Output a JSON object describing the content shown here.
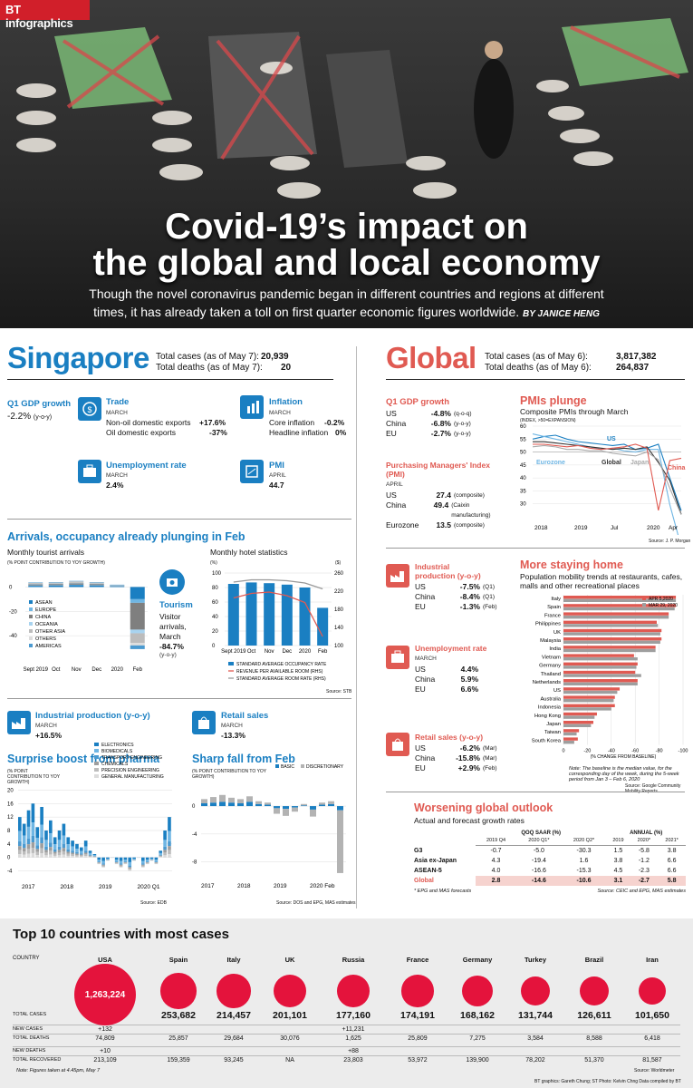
{
  "header": {
    "logo": "BT infographics",
    "title_line1": "Covid-19’s impact on",
    "title_line2": "the global and local economy",
    "subtitle": "Though the novel coronavirus pandemic began in different countries and regions at different times, it has already taken a toll on first quarter economic figures worldwide.",
    "byline": "BY JANICE HENG"
  },
  "singapore": {
    "title": "Singapore",
    "cases_label": "Total cases (as of May 7):",
    "cases": "20,939",
    "deaths_label": "Total deaths (as of May 7):",
    "deaths": "20",
    "gdp_title": "Q1 GDP growth",
    "gdp_value": "-2.2%",
    "gdp_unit": "(y-o-y)",
    "trade_title": "Trade",
    "trade_month": "MARCH",
    "nodx_label": "Non-oil domestic exports",
    "nodx": "+17.6%",
    "odx_label": "Oil domestic exports",
    "odx": "-37%",
    "infl_title": "Inflation",
    "infl_month": "MARCH",
    "core_label": "Core inflation",
    "core": "-0.2%",
    "headline_label": "Headline inflation",
    "headline": "0%",
    "unemp_title": "Unemployment rate",
    "unemp_month": "MARCH",
    "unemp": "2.4%",
    "pmi_title": "PMI",
    "pmi_month": "APRIL",
    "pmi": "44.7",
    "arrivals_title": "Arrivals, occupancy already plunging in Feb",
    "tourist_title": "Monthly tourist arrivals",
    "tourist_axis": "(% POINT CONTRIBUTION TO YOY GROWTH)",
    "hotel_title": "Monthly hotel statistics",
    "hotel_left_unit": "(%)",
    "hotel_right_unit": "($)",
    "tourism_title": "Tourism",
    "tourism_text": "Visitor arrivals, March",
    "tourism_value": "-84.7%",
    "tourism_unit": "(y-o-y)",
    "source_stb": "Source: STB",
    "ip_title": "Industrial production (y-o-y)",
    "ip_month": "MARCH",
    "ip_value": "+16.5%",
    "retail_title": "Retail sales",
    "retail_month": "MARCH",
    "retail_value": "-13.3%",
    "pharma_title": "Surprise boost from pharma",
    "pharma_axis": "(% POINT CONTRIBUTION TO YOY GROWTH)",
    "feb_title": "Sharp fall from Feb",
    "feb_axis": "(% POINT CONTRIBUTION TO YOY GROWTH)",
    "source_edb": "Source: EDB",
    "source_dos": "Source: DOS and EPG, MAS estimates"
  },
  "global": {
    "title": "Global",
    "cases_label": "Total cases (as of May 6):",
    "cases": "3,817,382",
    "deaths_label": "Total deaths (as of May 6):",
    "deaths": "264,837",
    "gdp_title": "Q1 GDP growth",
    "gdp_rows": [
      {
        "c": "US",
        "v": "-4.8%",
        "n": "(q-o-q)"
      },
      {
        "c": "China",
        "v": "-6.8%",
        "n": "(y-o-y)"
      },
      {
        "c": "EU",
        "v": "-2.7%",
        "n": "(y-o-y)"
      }
    ],
    "pmi_title": "Purchasing Managers' Index (PMI)",
    "pmi_month": "APRIL",
    "pmi_rows": [
      {
        "c": "US",
        "v": "27.4",
        "n": "(composite)"
      },
      {
        "c": "China",
        "v": "49.4",
        "n": "(Caixin manufacturing)"
      },
      {
        "c": "Eurozone",
        "v": "13.5",
        "n": "(composite)"
      }
    ],
    "pmi_chart_title": "PMIs plunge",
    "pmi_chart_sub": "Composite PMIs through March",
    "pmi_chart_axis": "(INDEX, >50=EXPANSION)",
    "source_jpm": "Source: J. P. Morgan",
    "ip_title": "Industrial production (y-o-y)",
    "ip_rows": [
      {
        "c": "US",
        "v": "-7.5%",
        "n": "(Q1)"
      },
      {
        "c": "China",
        "v": "-8.4%",
        "n": "(Q1)"
      },
      {
        "c": "EU",
        "v": "-1.3%",
        "n": "(Feb)"
      }
    ],
    "unemp_title": "Unemployment rate",
    "unemp_month": "MARCH",
    "unemp_rows": [
      {
        "c": "US",
        "v": "4.4%"
      },
      {
        "c": "China",
        "v": "5.9%"
      },
      {
        "c": "EU",
        "v": "6.6%"
      }
    ],
    "retail_title": "Retail sales (y-o-y)",
    "retail_rows": [
      {
        "c": "US",
        "v": "-6.2%",
        "n": "(Mar)"
      },
      {
        "c": "China",
        "v": "-15.8%",
        "n": "(Mar)"
      },
      {
        "c": "EU",
        "v": "+2.9%",
        "n": "(Feb)"
      }
    ],
    "mobility_title": "More staying home",
    "mobility_sub": "Population mobility trends at restaurants, cafes, malls and other recreational places",
    "mobility_note": "Note: The baseline is the median value, for the corresponding day of the week, during the 5-week period from Jan 3 – Feb 6, 2020",
    "mobility_axis": "(% CHANGE FROM BASELINE)",
    "source_google": "Source: Google Community Mobility Reports",
    "outlook_title": "Worsening global outlook",
    "outlook_sub": "Actual and forecast growth rates",
    "outlook_group1": "QOQ SAAR (%)",
    "outlook_group2": "ANNUAL (%)",
    "outlook_cols": [
      "2019 Q4",
      "2020 Q1*",
      "2020 Q2*",
      "2019",
      "2020*",
      "2021*"
    ],
    "outlook_rows": [
      {
        "name": "G3",
        "vals": [
          "-0.7",
          "-5.0",
          "-30.3",
          "1.5",
          "-5.8",
          "3.8"
        ]
      },
      {
        "name": "Asia ex-Japan",
        "vals": [
          "4.3",
          "-19.4",
          "1.6",
          "3.8",
          "-1.2",
          "6.6"
        ]
      },
      {
        "name": "ASEAN-5",
        "vals": [
          "4.0",
          "-16.6",
          "-15.3",
          "4.5",
          "-2.3",
          "6.6"
        ]
      },
      {
        "name": "Global",
        "vals": [
          "2.8",
          "-14.6",
          "-10.6",
          "3.1",
          "-2.7",
          "5.8"
        ]
      }
    ],
    "outlook_note": "* EPG and MAS forecasts",
    "source_ceic": "Source: CEIC and EPG, MAS estimates"
  },
  "top10": {
    "title": "Top 10 countries with most cases",
    "country_label": "COUNTRY",
    "row_labels": [
      "TOTAL CASES",
      "NEW CASES",
      "TOTAL DEATHS",
      "NEW DEATHS",
      "TOTAL RECOVERED"
    ],
    "countries": [
      {
        "name": "USA",
        "cases": "1,263,224",
        "cases_n": 1263224,
        "new": "+132",
        "deaths": "74,809",
        "new_d": "+10",
        "rec": "213,109"
      },
      {
        "name": "Spain",
        "cases": "253,682",
        "cases_n": 253682,
        "new": "",
        "deaths": "25,857",
        "new_d": "",
        "rec": "159,359"
      },
      {
        "name": "Italy",
        "cases": "214,457",
        "cases_n": 214457,
        "new": "",
        "deaths": "29,684",
        "new_d": "",
        "rec": "93,245"
      },
      {
        "name": "UK",
        "cases": "201,101",
        "cases_n": 201101,
        "new": "",
        "deaths": "30,076",
        "new_d": "",
        "rec": "NA"
      },
      {
        "name": "Russia",
        "cases": "177,160",
        "cases_n": 177160,
        "new": "+11,231",
        "deaths": "1,625",
        "new_d": "+88",
        "rec": "23,803"
      },
      {
        "name": "France",
        "cases": "174,191",
        "cases_n": 174191,
        "new": "",
        "deaths": "25,809",
        "new_d": "",
        "rec": "53,972"
      },
      {
        "name": "Germany",
        "cases": "168,162",
        "cases_n": 168162,
        "new": "",
        "deaths": "7,275",
        "new_d": "",
        "rec": "139,900"
      },
      {
        "name": "Turkey",
        "cases": "131,744",
        "cases_n": 131744,
        "new": "",
        "deaths": "3,584",
        "new_d": "",
        "rec": "78,202"
      },
      {
        "name": "Brazil",
        "cases": "126,611",
        "cases_n": 126611,
        "new": "",
        "deaths": "8,588",
        "new_d": "",
        "rec": "51,370"
      },
      {
        "name": "Iran",
        "cases": "101,650",
        "cases_n": 101650,
        "new": "",
        "deaths": "6,418",
        "new_d": "",
        "rec": "81,587"
      }
    ],
    "note": "Note: Figures taken at 4.45pm, May 7",
    "source": "Source: Worldmeter",
    "credits": "BT graphics: Gareth Chung; ST Photo: Kelvin Chng   Data compiled by BT"
  },
  "colors": {
    "blue": "#1a7fc2",
    "red": "#e05a52",
    "grey": "#999999",
    "bg_grey": "#ececec"
  },
  "chart_data": [
    {
      "type": "bar",
      "title": "Monthly tourist arrivals",
      "categories": [
        "Sept 2019",
        "Oct",
        "Nov",
        "Dec",
        "2020",
        "Feb"
      ],
      "ylim": [
        -60,
        10
      ],
      "yticks": [
        0,
        -20,
        -40
      ],
      "series": [
        {
          "name": "ASEAN",
          "values": [
            1.0,
            1.2,
            1.5,
            1.2,
            0.5,
            -10
          ]
        },
        {
          "name": "EUROPE",
          "values": [
            0.3,
            0.3,
            0.4,
            0.3,
            0.2,
            -3
          ]
        },
        {
          "name": "CHINA",
          "values": [
            1.0,
            1.0,
            1.2,
            1.0,
            0.5,
            -22
          ]
        },
        {
          "name": "OCEANIA",
          "values": [
            0.2,
            0.3,
            0.3,
            0.3,
            0.1,
            -3
          ]
        },
        {
          "name": "OTHER ASIA",
          "values": [
            0.8,
            0.8,
            1.0,
            0.8,
            0.4,
            -8
          ]
        },
        {
          "name": "OTHERS",
          "values": [
            0.2,
            0.2,
            0.3,
            0.2,
            0.1,
            -2
          ]
        },
        {
          "name": "AMERICAS",
          "values": [
            0.3,
            0.2,
            0.3,
            0.2,
            0.1,
            -3
          ]
        }
      ]
    },
    {
      "type": "bar",
      "title": "Monthly hotel statistics",
      "categories": [
        "Sept 2019",
        "Oct",
        "Nov",
        "Dec",
        "2020",
        "Feb"
      ],
      "ylim": [
        0,
        100
      ],
      "yticks": [
        0,
        20,
        40,
        60,
        80,
        100
      ],
      "y2lim": [
        100,
        260
      ],
      "y2ticks": [
        100,
        140,
        180,
        220,
        260
      ],
      "series": [
        {
          "name": "STANDARD AVERAGE OCCUPANCY RATE",
          "values": [
            85,
            87,
            86,
            84,
            80,
            52
          ]
        },
        {
          "name": "REVENUE PER AVAILABLE ROOM (RHS)",
          "values": [
            205,
            215,
            218,
            210,
            195,
            120
          ]
        },
        {
          "name": "STANDARD AVERAGE ROOM RATE (RHS)",
          "values": [
            240,
            245,
            245,
            243,
            238,
            225
          ]
        }
      ]
    },
    {
      "type": "bar",
      "title": "Surprise boost from pharma",
      "x_labels": [
        "2017",
        "2018",
        "2019",
        "2020 Q1"
      ],
      "ylim": [
        -6,
        22
      ],
      "yticks": [
        20,
        16,
        12,
        8,
        4,
        0,
        -4
      ],
      "series_names": [
        "ELECTRONICS",
        "BIOMEDICALS",
        "TRANSPORT ENGINEERING",
        "CHEMICALS",
        "PRECISION ENGINEERING",
        "GENERAL MANUFACTURING"
      ],
      "totals": [
        12,
        10,
        14,
        16,
        9,
        15,
        8,
        11,
        6,
        8,
        10,
        6,
        5,
        4,
        3,
        5,
        2,
        1,
        -2,
        -3,
        -1,
        0,
        -2,
        -3,
        -2,
        -4,
        -1,
        0,
        -3,
        -2,
        -1,
        -2,
        2,
        8,
        12
      ]
    },
    {
      "type": "bar",
      "title": "Sharp fall from Feb",
      "x_labels": [
        "2017",
        "2018",
        "2019",
        "2020 Feb"
      ],
      "ylim": [
        -10,
        3
      ],
      "yticks": [
        0,
        -4,
        -8
      ],
      "series": [
        {
          "name": "BASIC",
          "values": [
            0.4,
            0.5,
            0.6,
            0.5,
            0.4,
            0.6,
            0.3,
            0.2,
            -0.3,
            -0.4,
            -0.2,
            0.1,
            -0.5,
            0.2,
            0.3,
            -0.6
          ]
        },
        {
          "name": "DISCRETIONARY",
          "values": [
            0.6,
            0.8,
            1.0,
            0.7,
            0.6,
            0.8,
            0.4,
            0.3,
            -0.8,
            -1.0,
            -0.6,
            0.2,
            -1.0,
            0.3,
            0.4,
            -9.0
          ]
        }
      ]
    },
    {
      "type": "line",
      "title": "PMIs plunge",
      "x_labels": [
        "2018",
        "2019",
        "Jul",
        "2020",
        "Apr"
      ],
      "ylim": [
        25,
        60
      ],
      "yticks": [
        60,
        55,
        50,
        45,
        40,
        35,
        30
      ],
      "series": [
        {
          "name": "US",
          "values": [
            55,
            56,
            56.5,
            55,
            54,
            53.5,
            53,
            52.5,
            53,
            51,
            51.5,
            53,
            40,
            27.4
          ]
        },
        {
          "name": "Eurozone",
          "values": [
            57,
            56,
            55,
            54,
            53,
            52,
            51,
            51.5,
            50.5,
            50,
            51,
            51,
            29.7,
            13.5
          ]
        },
        {
          "name": "Global",
          "values": [
            54,
            54,
            53.5,
            53,
            52.5,
            52,
            51.5,
            51,
            51.5,
            51,
            52,
            46,
            39,
            26
          ]
        },
        {
          "name": "Japan",
          "values": [
            52,
            52.5,
            52,
            51,
            51,
            50.5,
            50.5,
            49.5,
            49,
            48.5,
            50,
            47,
            36,
            25.8
          ]
        },
        {
          "name": "China",
          "values": [
            53,
            53,
            52.5,
            52,
            52.5,
            51.5,
            51,
            51.5,
            52,
            53,
            51.5,
            27.5,
            46.7,
            47.6
          ]
        }
      ]
    },
    {
      "type": "bar",
      "title": "More staying home",
      "categories": [
        "Italy",
        "Spain",
        "France",
        "Philippines",
        "UK",
        "Malaysia",
        "India",
        "Vietnam",
        "Germany",
        "Thailand",
        "Netherlands",
        "US",
        "Australia",
        "Indonesia",
        "Hong Kong",
        "Japan",
        "Taiwan",
        "South Korea"
      ],
      "xlim": [
        0,
        -100
      ],
      "xticks": [
        0,
        -20,
        -40,
        -60,
        -80,
        -100
      ],
      "series": [
        {
          "name": "APR 5,2020",
          "values": [
            -94,
            -94,
            -88,
            -78,
            -82,
            -82,
            -77,
            -59,
            -62,
            -60,
            -62,
            -47,
            -43,
            -43,
            -28,
            -25,
            -13,
            -12
          ]
        },
        {
          "name": "MAR 29, 2020",
          "values": [
            -94,
            -93,
            -88,
            -79,
            -81,
            -81,
            -77,
            -62,
            -61,
            -65,
            -62,
            -45,
            -42,
            -40,
            -26,
            -23,
            -11,
            -9
          ]
        }
      ]
    },
    {
      "type": "scatter",
      "title": "Top 10 countries with most cases",
      "categories": [
        "USA",
        "Spain",
        "Italy",
        "UK",
        "Russia",
        "France",
        "Germany",
        "Turkey",
        "Brazil",
        "Iran"
      ],
      "values": [
        1263224,
        253682,
        214457,
        201101,
        177160,
        174191,
        168162,
        131744,
        126611,
        101650
      ]
    }
  ]
}
